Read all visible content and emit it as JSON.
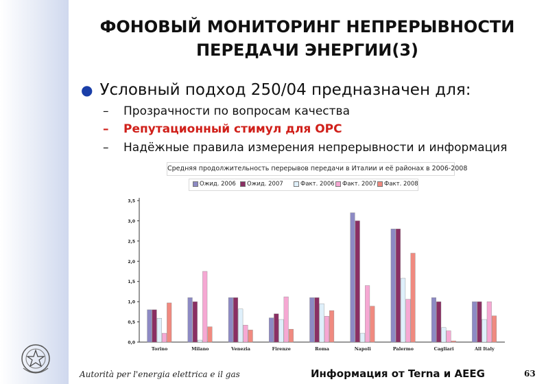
{
  "slide": {
    "title_line1": "ФОНОВЫЙ МОНИТОРИНГ НЕПРЕРЫВНОСТИ",
    "title_line2": "ПЕРЕДАЧИ ЭНЕРГИИ(3)",
    "bullet": "Условный подход 250/04 предназначен для:",
    "sub_items": [
      "Прозрачности по вопросам качества",
      "Репутационный стимул для ОРС",
      "Надёжные правила измерения непрерывности и информация"
    ],
    "footer_left": "Autorità per l'energia elettrica e il gas",
    "footer_center": "Информация от  Terna и AEEG",
    "page_number": "63"
  },
  "chart_data": {
    "type": "bar",
    "title": "Средняя продолжительность перерывов передачи в Италии и её районах в 2006-2008",
    "categories": [
      "Torino",
      "Milano",
      "Venezia",
      "Firenze",
      "Roma",
      "Napoli",
      "Palermo",
      "Cagliari",
      "All Italy"
    ],
    "series": [
      {
        "name": "Ожид. 2006",
        "color": "#8d8ac4",
        "values": [
          0.8,
          1.1,
          1.1,
          0.6,
          1.1,
          3.2,
          2.8,
          1.1,
          1.0
        ]
      },
      {
        "name": "Ожид. 2007",
        "color": "#8a2f63",
        "values": [
          0.8,
          1.0,
          1.1,
          0.7,
          1.1,
          3.0,
          2.8,
          1.0,
          1.0
        ]
      },
      {
        "name": "Факт. 2006",
        "color": "#dff0fb",
        "values": [
          0.59,
          0.05,
          0.82,
          0.56,
          0.95,
          0.22,
          1.58,
          0.36,
          0.56
        ]
      },
      {
        "name": "Факт. 2007",
        "color": "#f6a8d3",
        "values": [
          0.22,
          1.75,
          0.42,
          1.12,
          0.64,
          1.4,
          1.06,
          0.28,
          1.0
        ]
      },
      {
        "name": "Факт. 2008",
        "color": "#f08a80",
        "values": [
          0.97,
          0.38,
          0.3,
          0.32,
          0.78,
          0.89,
          2.2,
          0.03,
          0.65
        ]
      }
    ],
    "yticks": [
      "0,0",
      "0,5",
      "1,0",
      "1,5",
      "2,0",
      "2,5",
      "3,0",
      "3,5"
    ],
    "ylim": [
      0,
      3.5
    ],
    "grid": false,
    "legend_position": "top"
  },
  "icons": {
    "emblem": "italian-republic-emblem"
  }
}
